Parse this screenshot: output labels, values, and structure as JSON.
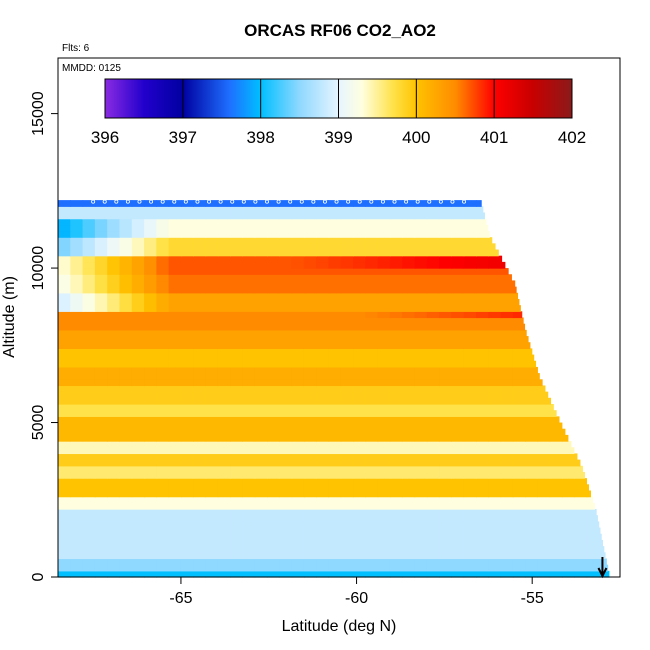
{
  "chart_data": {
    "type": "heatmap",
    "title": "ORCAS RF06 CO2_AO2",
    "flights_label": "Flts: 6",
    "date_label": "MMDD: 0125",
    "xlabel": "Latitude (deg N)",
    "ylabel": "Altitude (m)",
    "xlim": [
      -68.5,
      -52.5
    ],
    "ylim": [
      0,
      16800
    ],
    "x_ticks": [
      -65,
      -60,
      -55
    ],
    "x_tick_labels": [
      "-65",
      "-60",
      "-55"
    ],
    "y_ticks": [
      0,
      5000,
      10000,
      15000
    ],
    "y_tick_labels": [
      "0",
      "5000",
      "10000",
      "15000"
    ],
    "colorbar": {
      "min": 396,
      "max": 402,
      "ticks": [
        396,
        397,
        398,
        399,
        400,
        401,
        402
      ],
      "tick_labels": [
        "396",
        "397",
        "398",
        "399",
        "400",
        "401",
        "402"
      ],
      "stops": [
        {
          "value": 396.0,
          "color": "#8a2be2"
        },
        {
          "value": 396.5,
          "color": "#2200cc"
        },
        {
          "value": 397.0,
          "color": "#0000a0"
        },
        {
          "value": 397.6,
          "color": "#1e6fff"
        },
        {
          "value": 398.0,
          "color": "#00bfff"
        },
        {
          "value": 398.5,
          "color": "#8fd8ff"
        },
        {
          "value": 399.0,
          "color": "#e6f5ff"
        },
        {
          "value": 399.3,
          "color": "#ffffe0"
        },
        {
          "value": 399.7,
          "color": "#ffe24a"
        },
        {
          "value": 400.0,
          "color": "#ffc300"
        },
        {
          "value": 400.5,
          "color": "#ff8c00"
        },
        {
          "value": 401.0,
          "color": "#ff0000"
        },
        {
          "value": 401.5,
          "color": "#c80000"
        },
        {
          "value": 402.0,
          "color": "#8b1a1a"
        }
      ]
    },
    "altitude_bands": [
      {
        "alt": [
          0,
          300
        ],
        "value": 398.0
      },
      {
        "alt": [
          300,
          700
        ],
        "value": 398.5
      },
      {
        "alt": [
          700,
          2200
        ],
        "value": 398.8
      },
      {
        "alt": [
          2200,
          2700
        ],
        "value": 399.3
      },
      {
        "alt": [
          2700,
          3200
        ],
        "value": 400.0
      },
      {
        "alt": [
          3200,
          3700
        ],
        "value": 399.6
      },
      {
        "alt": [
          3700,
          4100
        ],
        "value": 399.9
      },
      {
        "alt": [
          4100,
          4500
        ],
        "value": 399.4
      },
      {
        "alt": [
          4500,
          5200
        ],
        "value": 400.1
      },
      {
        "alt": [
          5200,
          5700
        ],
        "value": 399.7
      },
      {
        "alt": [
          5700,
          6200
        ],
        "value": 399.9
      },
      {
        "alt": [
          6200,
          6800
        ],
        "value": 400.2
      },
      {
        "alt": [
          6800,
          7500
        ],
        "value": 400.0
      },
      {
        "alt": [
          7500,
          8000
        ],
        "value": 400.3
      },
      {
        "alt": [
          8000,
          8600
        ],
        "value": 400.5
      },
      {
        "alt": [
          8600,
          9200
        ],
        "value": 400.3
      },
      {
        "alt": [
          9200,
          9800
        ],
        "value": 400.6
      },
      {
        "alt": [
          9800,
          10400
        ],
        "value": 400.7
      },
      {
        "alt": [
          10400,
          11000
        ],
        "value": 399.8
      },
      {
        "alt": [
          11000,
          11600
        ],
        "value": 399.3
      },
      {
        "alt": [
          11600,
          12000
        ],
        "value": 398.8
      },
      {
        "alt": [
          12000,
          12300
        ],
        "value": 397.6
      }
    ],
    "max_latitude_by_altitude": [
      {
        "alt": 0,
        "lat": -52.8
      },
      {
        "alt": 2200,
        "lat": -53.2
      },
      {
        "alt": 3600,
        "lat": -53.6
      },
      {
        "alt": 5000,
        "lat": -54.2
      },
      {
        "alt": 6500,
        "lat": -54.8
      },
      {
        "alt": 8000,
        "lat": -55.2
      },
      {
        "alt": 9500,
        "lat": -55.5
      },
      {
        "alt": 11000,
        "lat": -56.2
      },
      {
        "alt": 12300,
        "lat": -56.5
      }
    ],
    "arrow_marker": {
      "lat": -53.0,
      "alt": 0
    }
  }
}
